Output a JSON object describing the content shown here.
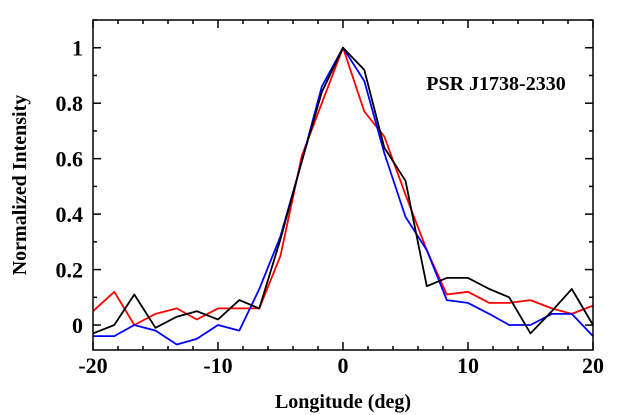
{
  "chart_data": {
    "type": "line",
    "title": "",
    "xlabel": "Longitude (deg)",
    "ylabel": "Normalized Intensity",
    "annotation": "PSR J1738-2330",
    "xlim": [
      -20,
      20
    ],
    "ylim": [
      -0.09,
      1.1
    ],
    "xticks": [
      -20,
      -10,
      0,
      10,
      20
    ],
    "xtick_labels": [
      "-20",
      "-10",
      "0",
      "10",
      "20"
    ],
    "yticks": [
      0,
      0.2,
      0.4,
      0.6,
      0.8,
      1
    ],
    "ytick_labels": [
      "0",
      "0.2",
      "0.4",
      "0.6",
      "0.8",
      "1"
    ],
    "grid": false,
    "series": [
      {
        "color": "#ff0000",
        "x": [
          -20,
          -18.3,
          -16.7,
          -15,
          -13.3,
          -11.7,
          -10,
          -8.3,
          -6.7,
          -5,
          -3.3,
          -1.7,
          0,
          1.7,
          3.3,
          5,
          6.7,
          8.3,
          10,
          11.7,
          13.3,
          15,
          16.7,
          18.3,
          20
        ],
        "y": [
          0.05,
          0.12,
          0.0,
          0.04,
          0.06,
          0.02,
          0.06,
          0.06,
          0.06,
          0.25,
          0.61,
          0.8,
          1.0,
          0.77,
          0.68,
          0.47,
          0.27,
          0.11,
          0.12,
          0.08,
          0.08,
          0.09,
          0.06,
          0.04,
          0.07
        ]
      },
      {
        "color": "#0000ff",
        "x": [
          -20,
          -18.3,
          -16.7,
          -15,
          -13.3,
          -11.7,
          -10,
          -8.3,
          -6.7,
          -5,
          -3.3,
          -1.7,
          0,
          1.7,
          3.3,
          5,
          6.7,
          8.3,
          10,
          11.7,
          13.3,
          15,
          16.7,
          18.3,
          20
        ],
        "y": [
          -0.04,
          -0.04,
          0.0,
          -0.02,
          -0.07,
          -0.05,
          0.0,
          -0.02,
          0.13,
          0.32,
          0.59,
          0.86,
          1.0,
          0.88,
          0.62,
          0.39,
          0.27,
          0.09,
          0.08,
          0.04,
          0.0,
          0.0,
          0.04,
          0.04,
          -0.04
        ]
      },
      {
        "color": "#000000",
        "x": [
          -20,
          -18.3,
          -16.7,
          -15,
          -13.3,
          -11.7,
          -10,
          -8.3,
          -6.7,
          -5,
          -3.3,
          -1.7,
          0,
          1.7,
          3.3,
          5,
          6.7,
          8.3,
          10,
          11.7,
          13.3,
          15,
          16.7,
          18.3,
          20
        ],
        "y": [
          -0.03,
          0.0,
          0.11,
          -0.01,
          0.03,
          0.05,
          0.02,
          0.09,
          0.06,
          0.31,
          0.59,
          0.84,
          1.0,
          0.92,
          0.64,
          0.52,
          0.14,
          0.17,
          0.17,
          0.13,
          0.1,
          -0.03,
          0.05,
          0.13,
          0.0
        ]
      }
    ]
  }
}
